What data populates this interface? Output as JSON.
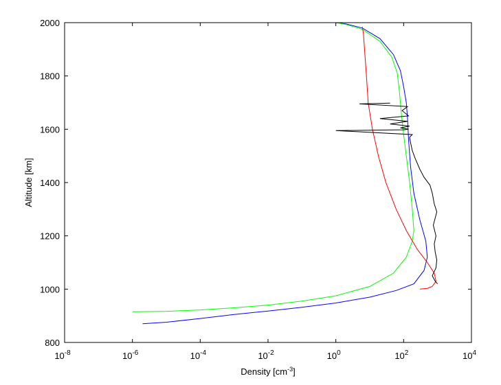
{
  "chart_data": {
    "type": "line",
    "xlabel": "Density [cm",
    "xlabel_exponent": "-3",
    "xlabel_suffix": "]",
    "ylabel": "Altitude [km]",
    "x_scale": "log",
    "xlim": [
      1e-08,
      10000
    ],
    "ylim": [
      800,
      2000
    ],
    "x_ticks": [
      {
        "base": "10",
        "exp": "-8",
        "value": 1e-08
      },
      {
        "base": "10",
        "exp": "-6",
        "value": 1e-06
      },
      {
        "base": "10",
        "exp": "-4",
        "value": 0.0001
      },
      {
        "base": "10",
        "exp": "-2",
        "value": 0.01
      },
      {
        "base": "10",
        "exp": "0",
        "value": 1
      },
      {
        "base": "10",
        "exp": "2",
        "value": 100
      },
      {
        "base": "10",
        "exp": "4",
        "value": 10000
      }
    ],
    "y_ticks": [
      "800",
      "1000",
      "1200",
      "1400",
      "1600",
      "1800",
      "2000"
    ],
    "grid": false,
    "legend": "none",
    "series": [
      {
        "color": "#0000ff",
        "points": [
          [
            2e-06,
            870
          ],
          [
            1e-05,
            876
          ],
          [
            0.0001,
            890
          ],
          [
            0.001,
            905
          ],
          [
            0.01,
            918
          ],
          [
            0.1,
            932
          ],
          [
            1,
            948
          ],
          [
            10,
            970
          ],
          [
            60,
            995
          ],
          [
            200,
            1020
          ],
          [
            400,
            1070
          ],
          [
            500,
            1120
          ],
          [
            450,
            1180
          ],
          [
            300,
            1260
          ],
          [
            200,
            1360
          ],
          [
            160,
            1460
          ],
          [
            140,
            1560
          ],
          [
            130,
            1640
          ],
          [
            120,
            1700
          ],
          [
            100,
            1760
          ],
          [
            80,
            1820
          ],
          [
            50,
            1880
          ],
          [
            20,
            1940
          ],
          [
            6,
            1980
          ],
          [
            2,
            1995
          ],
          [
            1,
            2000
          ]
        ]
      },
      {
        "color": "#00ff00",
        "points": [
          [
            1e-06,
            915
          ],
          [
            1e-05,
            917
          ],
          [
            0.0001,
            922
          ],
          [
            0.001,
            930
          ],
          [
            0.01,
            940
          ],
          [
            0.1,
            955
          ],
          [
            1,
            975
          ],
          [
            10,
            1010
          ],
          [
            50,
            1060
          ],
          [
            120,
            1120
          ],
          [
            180,
            1180
          ],
          [
            200,
            1220
          ],
          [
            180,
            1300
          ],
          [
            150,
            1400
          ],
          [
            120,
            1500
          ],
          [
            100,
            1580
          ],
          [
            85,
            1660
          ],
          [
            75,
            1740
          ],
          [
            65,
            1810
          ],
          [
            45,
            1870
          ],
          [
            20,
            1930
          ],
          [
            6,
            1975
          ],
          [
            2,
            1993
          ],
          [
            1,
            2000
          ]
        ]
      },
      {
        "color": "#ff0000",
        "points": [
          [
            300,
            1000
          ],
          [
            500,
            1003
          ],
          [
            700,
            1010
          ],
          [
            900,
            1030
          ],
          [
            800,
            1060
          ],
          [
            500,
            1100
          ],
          [
            250,
            1150
          ],
          [
            120,
            1220
          ],
          [
            60,
            1300
          ],
          [
            30,
            1400
          ],
          [
            18,
            1500
          ],
          [
            12,
            1600
          ],
          [
            9,
            1700
          ],
          [
            8,
            1800
          ],
          [
            7,
            1900
          ],
          [
            6.5,
            1960
          ],
          [
            6,
            1985
          ]
        ]
      },
      {
        "color": "#000000",
        "points": [
          [
            1000,
            1020
          ],
          [
            850,
            1030
          ],
          [
            700,
            1050
          ],
          [
            900,
            1080
          ],
          [
            950,
            1110
          ],
          [
            850,
            1140
          ],
          [
            800,
            1170
          ],
          [
            900,
            1200
          ],
          [
            750,
            1240
          ],
          [
            950,
            1290
          ],
          [
            800,
            1320
          ],
          [
            700,
            1360
          ],
          [
            600,
            1390
          ],
          [
            400,
            1420
          ],
          [
            300,
            1450
          ],
          [
            220,
            1490
          ],
          [
            180,
            1520
          ],
          [
            160,
            1550
          ],
          [
            150,
            1570
          ],
          [
            180,
            1580
          ],
          [
            1,
            1595
          ],
          [
            100,
            1598
          ],
          [
            140,
            1600
          ],
          [
            80,
            1605
          ],
          [
            150,
            1612
          ],
          [
            40,
            1620
          ],
          [
            130,
            1630
          ],
          [
            20,
            1640
          ],
          [
            140,
            1650
          ],
          [
            90,
            1670
          ],
          [
            130,
            1685
          ],
          [
            5,
            1695
          ],
          [
            40,
            1698
          ]
        ]
      }
    ]
  }
}
